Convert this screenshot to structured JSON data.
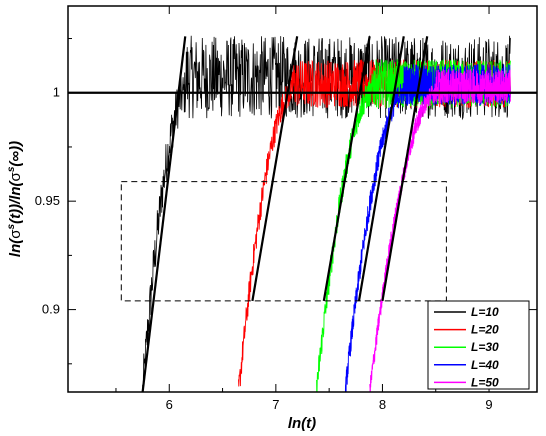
{
  "chart_data": {
    "type": "line",
    "xlabel": "ln(t)",
    "ylabel_parts": [
      "ln(",
      "s",
      "(t))/ln(",
      "s",
      "(∞))"
    ],
    "sigma_glyph": "σ",
    "xlim": [
      5.05,
      9.45
    ],
    "ylim": [
      0.862,
      1.04
    ],
    "xticks": [
      6,
      7,
      8,
      9
    ],
    "xtick_labels": [
      "6",
      "7",
      "8",
      "9"
    ],
    "yticks": [
      0.9,
      0.95,
      1.0
    ],
    "ytick_labels": [
      "0.9",
      "0.95",
      "1"
    ],
    "reference_line": {
      "y": 1.0
    },
    "dashed_box": {
      "x": [
        5.55,
        8.6
      ],
      "y": [
        0.904,
        0.959
      ]
    },
    "legend_position": "bottom-right",
    "series": [
      {
        "name": "L=10",
        "color": "#000000",
        "x_start": 5.75,
        "x_end": 9.2,
        "rise_x": [
          5.75,
          6.15
        ],
        "sat_ampl": 0.012,
        "fit": {
          "x": [
            5.75,
            6.15
          ],
          "y": [
            0.862,
            1.026
          ]
        }
      },
      {
        "name": "L=20",
        "color": "#ff0000",
        "x_start": 6.65,
        "x_end": 9.2,
        "rise_x": [
          6.65,
          7.15
        ],
        "sat_ampl": 0.007,
        "fit": {
          "x": [
            6.78,
            7.2
          ],
          "y": [
            0.904,
            1.026
          ]
        }
      },
      {
        "name": "L=30",
        "color": "#00ff00",
        "x_start": 7.38,
        "x_end": 9.2,
        "rise_x": [
          7.38,
          7.9
        ],
        "sat_ampl": 0.007,
        "fit": {
          "x": [
            7.45,
            7.88
          ],
          "y": [
            0.904,
            1.026
          ]
        }
      },
      {
        "name": "L=40",
        "color": "#0000ff",
        "x_start": 7.65,
        "x_end": 9.2,
        "rise_x": [
          7.65,
          8.2
        ],
        "sat_ampl": 0.006,
        "fit": {
          "x": [
            7.78,
            8.2
          ],
          "y": [
            0.904,
            1.026
          ]
        }
      },
      {
        "name": "L=50",
        "color": "#ff00ff",
        "x_start": 7.88,
        "x_end": 9.2,
        "rise_x": [
          7.88,
          8.5
        ],
        "sat_ampl": 0.005,
        "fit": {
          "x": [
            8.0,
            8.42
          ],
          "y": [
            0.904,
            1.026
          ]
        }
      }
    ]
  }
}
